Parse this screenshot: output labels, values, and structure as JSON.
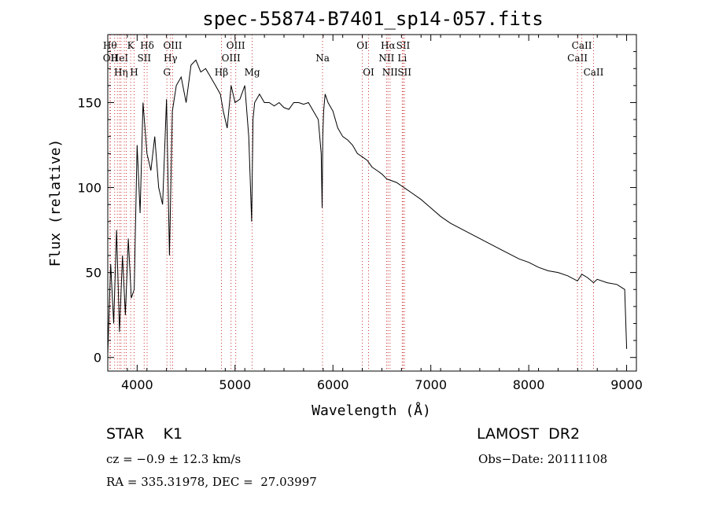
{
  "chart_data": {
    "type": "line",
    "title": "spec-55874-B7401_sp14-057.fits",
    "xlabel": "Wavelength (Å)",
    "ylabel": "Flux (relative)",
    "xlim": [
      3700,
      9100
    ],
    "ylim": [
      -8,
      190
    ],
    "xticks": [
      4000,
      5000,
      6000,
      7000,
      8000,
      9000
    ],
    "yticks": [
      0,
      50,
      100,
      150
    ],
    "grid": false,
    "series": [
      {
        "x": [
          3700,
          3730,
          3760,
          3790,
          3820,
          3850,
          3880,
          3910,
          3940,
          3970,
          4000,
          4030,
          4060,
          4100,
          4140,
          4180,
          4220,
          4260,
          4300,
          4330,
          4360,
          4400,
          4450,
          4500,
          4550,
          4600,
          4650,
          4700,
          4750,
          4800,
          4850,
          4880,
          4920,
          4960,
          5000,
          5050,
          5100,
          5140,
          5170,
          5183,
          5200,
          5250,
          5300,
          5350,
          5400,
          5450,
          5500,
          5550,
          5600,
          5650,
          5700,
          5750,
          5800,
          5850,
          5880,
          5890,
          5896,
          5905,
          5920,
          5950,
          6000,
          6050,
          6100,
          6150,
          6200,
          6250,
          6300,
          6350,
          6400,
          6450,
          6500,
          6550,
          6600,
          6650,
          6700,
          6750,
          6800,
          6900,
          7000,
          7100,
          7200,
          7300,
          7400,
          7500,
          7600,
          7700,
          7800,
          7900,
          8000,
          8100,
          8200,
          8300,
          8400,
          8498,
          8542,
          8600,
          8662,
          8700,
          8800,
          8900,
          8980,
          9000
        ],
        "values": [
          2,
          55,
          20,
          75,
          15,
          60,
          25,
          70,
          35,
          40,
          125,
          85,
          150,
          120,
          110,
          130,
          100,
          90,
          152,
          60,
          145,
          160,
          165,
          150,
          172,
          175,
          168,
          170,
          165,
          160,
          155,
          145,
          135,
          160,
          150,
          152,
          160,
          130,
          80,
          140,
          150,
          155,
          150,
          150,
          148,
          150,
          147,
          146,
          150,
          150,
          149,
          150,
          145,
          140,
          120,
          88,
          130,
          145,
          155,
          150,
          145,
          135,
          130,
          128,
          125,
          120,
          118,
          116,
          112,
          110,
          108,
          105,
          104,
          103,
          101,
          99,
          97,
          93,
          88,
          83,
          79,
          76,
          73,
          70,
          67,
          64,
          61,
          58,
          56,
          53,
          51,
          50,
          48,
          45,
          49,
          47,
          44,
          46,
          44,
          43,
          40,
          5
        ]
      }
    ],
    "line_markers": [
      {
        "x": 3722,
        "label": "Hθ",
        "row": 1
      },
      {
        "x": 3727,
        "label": "OII",
        "row": 2
      },
      {
        "x": 3770,
        "label": "",
        "row": 0
      },
      {
        "x": 3798,
        "label": "",
        "row": 0
      },
      {
        "x": 3820,
        "label": "HeI",
        "row": 2
      },
      {
        "x": 3835,
        "label": "Hη",
        "row": 3
      },
      {
        "x": 3869,
        "label": "",
        "row": 0
      },
      {
        "x": 3889,
        "label": "",
        "row": 0
      },
      {
        "x": 3934,
        "label": "K",
        "row": 1
      },
      {
        "x": 3969,
        "label": "H",
        "row": 3
      },
      {
        "x": 4072,
        "label": "SII",
        "row": 2
      },
      {
        "x": 4102,
        "label": "Hδ",
        "row": 1
      },
      {
        "x": 4304,
        "label": "G",
        "row": 3
      },
      {
        "x": 4341,
        "label": "Hγ",
        "row": 2
      },
      {
        "x": 4363,
        "label": "OIII",
        "row": 1
      },
      {
        "x": 4861,
        "label": "Hβ",
        "row": 3
      },
      {
        "x": 4959,
        "label": "OIII",
        "row": 2
      },
      {
        "x": 5007,
        "label": "OIII",
        "row": 1
      },
      {
        "x": 5175,
        "label": "Mg",
        "row": 3
      },
      {
        "x": 5894,
        "label": "Na",
        "row": 2
      },
      {
        "x": 6300,
        "label": "OI",
        "row": 1
      },
      {
        "x": 6364,
        "label": "OI",
        "row": 3
      },
      {
        "x": 6548,
        "label": "NII",
        "row": 2
      },
      {
        "x": 6563,
        "label": "Hα",
        "row": 1
      },
      {
        "x": 6583,
        "label": "NII",
        "row": 3
      },
      {
        "x": 6708,
        "label": "Li",
        "row": 2
      },
      {
        "x": 6717,
        "label": "SII",
        "row": 1
      },
      {
        "x": 6731,
        "label": "SII",
        "row": 3
      },
      {
        "x": 8498,
        "label": "CaII",
        "row": 2
      },
      {
        "x": 8542,
        "label": "CaII",
        "row": 1
      },
      {
        "x": 8662,
        "label": "CaII",
        "row": 3
      }
    ]
  },
  "info": {
    "class": "STAR    K1",
    "survey": "LAMOST  DR2",
    "redshift": "cz = −0.9 ± 12.3 km/s",
    "obs_date": "Obs−Date: 20111108",
    "coords": "RA = 335.31978, DEC =  27.03997"
  },
  "colors": {
    "line": "#000000",
    "marker": "#cc3333",
    "axis": "#000000",
    "background": "#ffffff"
  }
}
